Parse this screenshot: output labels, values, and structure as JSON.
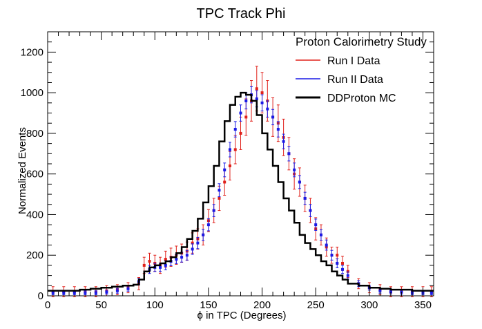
{
  "chart_data": {
    "type": "histogram",
    "title": "TPC Track Phi",
    "xlabel": "ϕ in TPC (Degrees)",
    "ylabel": "Normalized Events",
    "xlim": [
      0,
      360
    ],
    "ylim": [
      0,
      1300
    ],
    "xticks": [
      0,
      50,
      100,
      150,
      200,
      250,
      300,
      350
    ],
    "yticks": [
      0,
      200,
      400,
      600,
      800,
      1000,
      1200
    ],
    "grid": false,
    "legend": {
      "title": "Proton Calorimetry Study",
      "placement": "top-right"
    },
    "series": [
      {
        "name": "Run I Data",
        "color": "#e0201a",
        "style": "points-with-errors",
        "x": [
          5,
          15,
          25,
          35,
          45,
          55,
          65,
          75,
          85,
          90,
          95,
          100,
          105,
          110,
          115,
          120,
          125,
          130,
          135,
          140,
          145,
          150,
          155,
          160,
          165,
          170,
          175,
          180,
          185,
          190,
          195,
          200,
          205,
          210,
          215,
          220,
          225,
          230,
          235,
          240,
          245,
          250,
          255,
          260,
          265,
          270,
          275,
          280,
          290,
          300,
          310,
          320,
          330,
          340,
          350,
          358
        ],
        "values": [
          20,
          20,
          20,
          20,
          20,
          25,
          30,
          40,
          60,
          150,
          170,
          160,
          150,
          180,
          190,
          200,
          210,
          220,
          260,
          280,
          300,
          370,
          420,
          480,
          560,
          640,
          720,
          800,
          880,
          960,
          1020,
          1000,
          960,
          880,
          850,
          780,
          700,
          600,
          560,
          480,
          420,
          330,
          300,
          240,
          200,
          200,
          160,
          120,
          60,
          40,
          30,
          20,
          20,
          20,
          20,
          20
        ],
        "errors": [
          25,
          25,
          25,
          25,
          25,
          25,
          25,
          25,
          30,
          40,
          40,
          40,
          40,
          40,
          45,
          45,
          45,
          45,
          50,
          50,
          50,
          55,
          60,
          60,
          65,
          70,
          70,
          80,
          90,
          100,
          110,
          100,
          100,
          95,
          90,
          90,
          80,
          75,
          70,
          65,
          60,
          55,
          50,
          45,
          40,
          40,
          35,
          30,
          25,
          25,
          25,
          25,
          25,
          25,
          25,
          25
        ]
      },
      {
        "name": "Run II Data",
        "color": "#1a1ae6",
        "style": "points-with-errors",
        "x": [
          5,
          15,
          25,
          35,
          45,
          55,
          65,
          75,
          85,
          95,
          100,
          105,
          110,
          115,
          120,
          125,
          130,
          135,
          140,
          145,
          150,
          155,
          160,
          165,
          170,
          175,
          180,
          185,
          190,
          195,
          200,
          205,
          210,
          215,
          220,
          225,
          230,
          235,
          240,
          245,
          250,
          255,
          260,
          265,
          270,
          275,
          280,
          290,
          300,
          310,
          320,
          330,
          340,
          350,
          358
        ],
        "values": [
          15,
          15,
          15,
          15,
          15,
          18,
          25,
          35,
          70,
          130,
          140,
          140,
          150,
          170,
          180,
          190,
          200,
          230,
          260,
          300,
          350,
          420,
          520,
          620,
          720,
          820,
          900,
          960,
          990,
          970,
          950,
          920,
          880,
          820,
          760,
          700,
          620,
          560,
          480,
          420,
          350,
          300,
          250,
          200,
          160,
          130,
          100,
          60,
          40,
          25,
          20,
          18,
          15,
          15,
          15
        ],
        "errors": [
          10,
          10,
          10,
          10,
          10,
          10,
          12,
          12,
          15,
          20,
          20,
          20,
          22,
          22,
          22,
          24,
          24,
          26,
          28,
          28,
          30,
          30,
          32,
          34,
          36,
          38,
          40,
          40,
          40,
          40,
          40,
          40,
          38,
          38,
          36,
          36,
          34,
          32,
          30,
          30,
          28,
          26,
          25,
          24,
          22,
          20,
          18,
          15,
          12,
          12,
          10,
          10,
          10,
          10,
          10
        ]
      },
      {
        "name": "DDProton MC",
        "color": "#000000",
        "style": "step",
        "x": [
          0,
          10,
          20,
          30,
          40,
          50,
          60,
          70,
          80,
          85,
          90,
          95,
          100,
          105,
          110,
          115,
          120,
          125,
          130,
          135,
          140,
          145,
          150,
          155,
          160,
          165,
          170,
          175,
          180,
          185,
          190,
          195,
          200,
          205,
          210,
          215,
          220,
          225,
          230,
          235,
          240,
          245,
          250,
          255,
          260,
          265,
          270,
          275,
          280,
          290,
          300,
          310,
          320,
          330,
          340,
          350,
          360
        ],
        "values": [
          25,
          25,
          25,
          30,
          35,
          40,
          45,
          50,
          55,
          80,
          120,
          140,
          150,
          160,
          170,
          190,
          210,
          240,
          280,
          320,
          380,
          460,
          540,
          640,
          760,
          860,
          940,
          980,
          1000,
          990,
          960,
          890,
          800,
          720,
          640,
          560,
          480,
          420,
          360,
          300,
          260,
          230,
          200,
          170,
          150,
          120,
          100,
          80,
          60,
          50,
          40,
          35,
          30,
          30,
          25,
          25,
          25
        ]
      }
    ]
  }
}
